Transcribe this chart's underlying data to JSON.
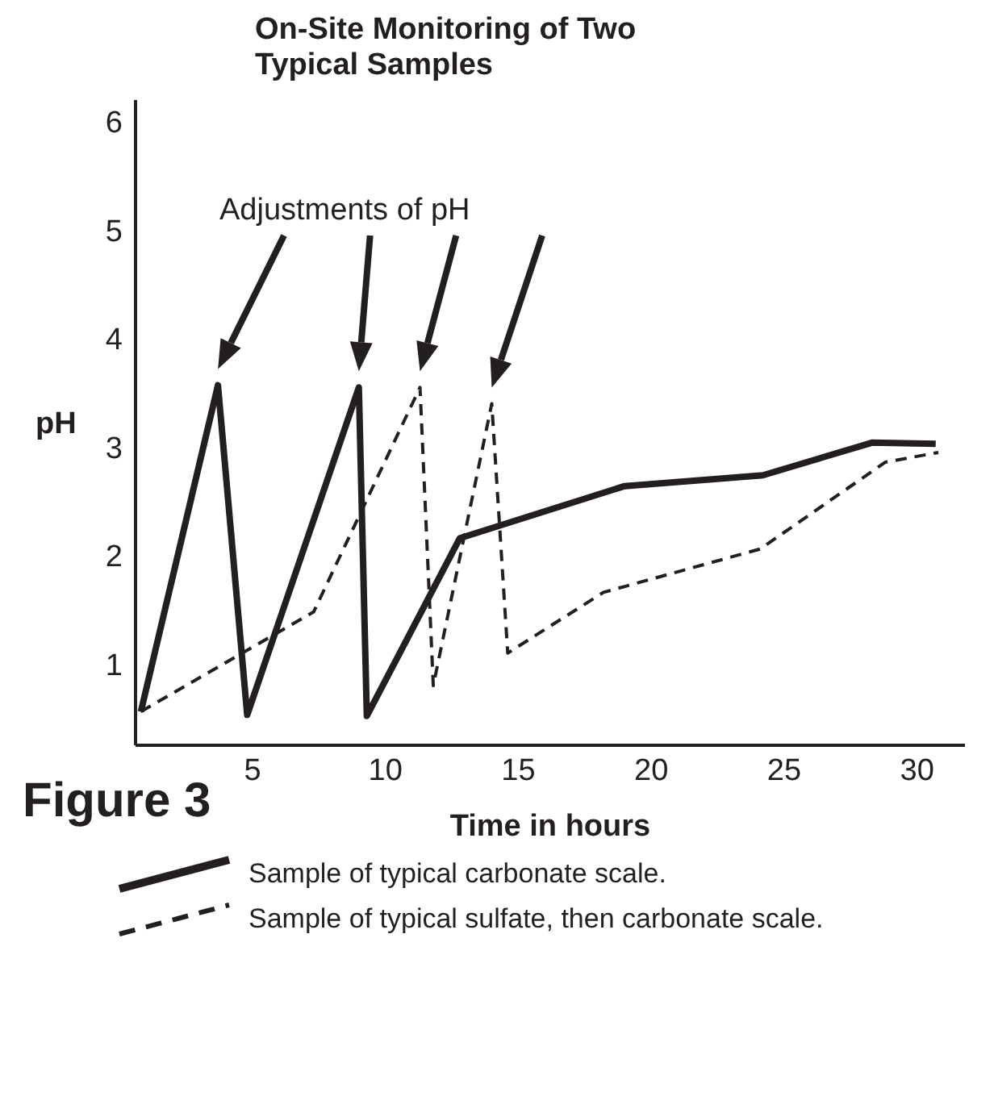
{
  "chart_data": {
    "type": "line",
    "title": "On-Site Monitoring of Two\nTypical Samples",
    "xlabel": "Time in hours",
    "ylabel": "pH",
    "xlim": [
      0.6,
      31.8
    ],
    "xticks": [
      5,
      10,
      15,
      20,
      25,
      30
    ],
    "ylim": [
      0.25,
      6.2
    ],
    "yticks": [
      1,
      2,
      3,
      4,
      5,
      6
    ],
    "grid": false,
    "legend": "bottom",
    "marker": "none",
    "annotations": [
      "Adjustments of pH",
      "Figure 3"
    ],
    "series": [
      {
        "name": "Sample of typical carbonate scale.",
        "color": "#231f20",
        "line_style": "solid",
        "x": [
          0.8,
          3.7,
          4.8,
          9.0,
          9.3,
          12.8,
          19.0,
          24.2,
          28.3,
          30.7
        ],
        "values": [
          0.56,
          3.57,
          0.53,
          3.55,
          0.52,
          2.16,
          2.64,
          2.74,
          3.04,
          3.03
        ]
      },
      {
        "name": "Sample of typical sulfate, then carbonate scale.",
        "color": "#231f20",
        "line_style": "dashed",
        "x": [
          0.8,
          7.3,
          11.3,
          11.8,
          14.0,
          14.6,
          18.2,
          24.1,
          28.8,
          30.8
        ],
        "values": [
          0.56,
          1.48,
          3.55,
          0.8,
          3.4,
          1.1,
          1.66,
          2.06,
          2.86,
          2.95
        ]
      }
    ]
  }
}
